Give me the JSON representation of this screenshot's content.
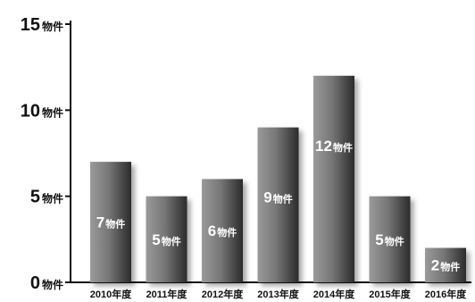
{
  "chart_data": {
    "type": "bar",
    "categories": [
      "2010年度",
      "2011年度",
      "2012年度",
      "2013年度",
      "2014年度",
      "2015年度",
      "2016年度"
    ],
    "values": [
      7,
      5,
      6,
      9,
      12,
      5,
      2
    ],
    "data_labels": [
      "7物件",
      "5物件",
      "6物件",
      "9物件",
      "12物件",
      "5物件",
      "2物件"
    ],
    "title": "",
    "xlabel": "",
    "ylabel": "",
    "ylim": [
      0,
      15
    ],
    "yticks": [
      0,
      5,
      10,
      15
    ],
    "ytick_labels": [
      "0物件",
      "5物件",
      "10物件",
      "15物件"
    ],
    "grid": false,
    "colors": {
      "bar_dark": "#2b2b2b",
      "bar_mid": "#777777",
      "bar_light": "#9a9a9a",
      "shadow": "#bdbdbd",
      "axis": "#111111"
    }
  }
}
